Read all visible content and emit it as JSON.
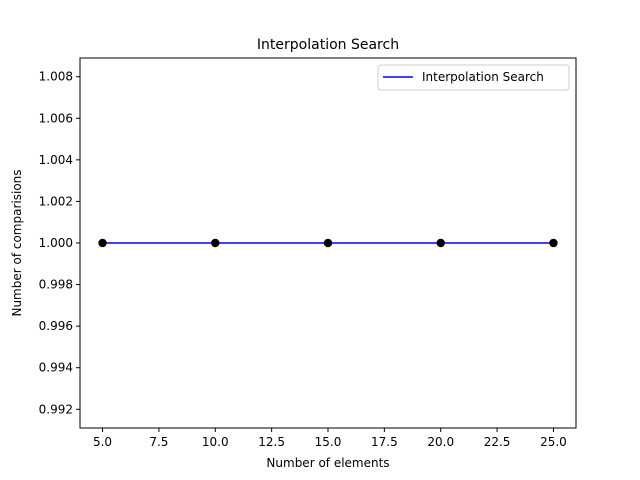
{
  "chart_data": {
    "type": "line",
    "title": "Interpolation Search",
    "xlabel": "Number of elements",
    "ylabel": "Number of comparisions",
    "x": [
      5,
      10,
      15,
      20,
      25
    ],
    "series": [
      {
        "name": "Interpolation Search",
        "values": [
          1,
          1,
          1,
          1,
          1
        ],
        "line_color": "#0000ff",
        "marker_color": "#000000"
      }
    ],
    "xlim": [
      4.0,
      26.0
    ],
    "ylim": [
      0.9911,
      1.0089
    ],
    "xticks": [
      5.0,
      7.5,
      10.0,
      12.5,
      15.0,
      17.5,
      20.0,
      22.5,
      25.0
    ],
    "xtick_labels": [
      "5.0",
      "7.5",
      "10.0",
      "12.5",
      "15.0",
      "17.5",
      "20.0",
      "22.5",
      "25.0"
    ],
    "yticks": [
      0.992,
      0.994,
      0.996,
      0.998,
      1.0,
      1.002,
      1.004,
      1.006,
      1.008
    ],
    "ytick_labels": [
      "0.992",
      "0.994",
      "0.996",
      "0.998",
      "1.000",
      "1.002",
      "1.004",
      "1.006",
      "1.008"
    ],
    "grid": false,
    "legend": "top-right"
  }
}
